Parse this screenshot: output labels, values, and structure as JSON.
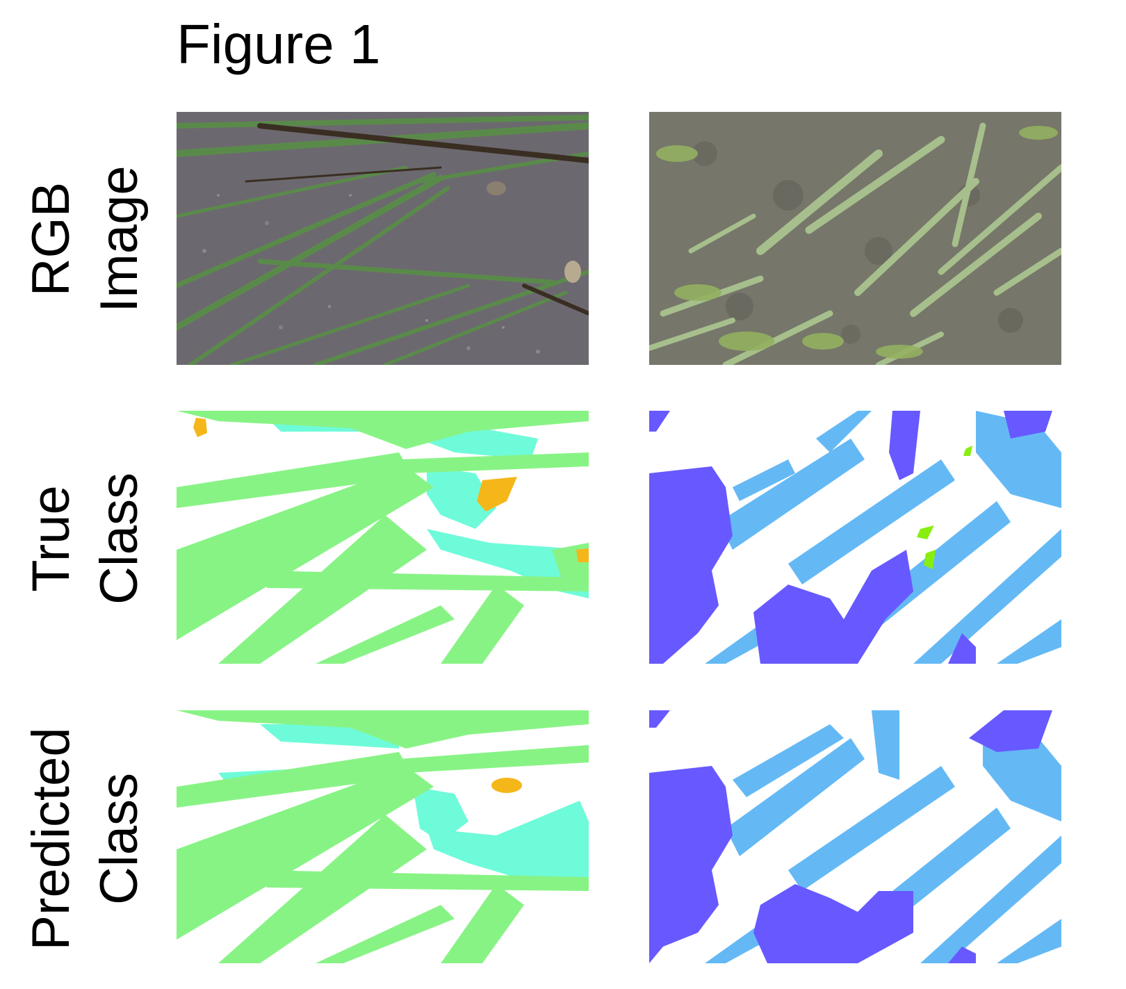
{
  "figure": {
    "title": "Figure 1"
  },
  "rows": [
    {
      "line1": "RGB",
      "line2": "Image"
    },
    {
      "line1": "True",
      "line2": "Class"
    },
    {
      "line1": "Predicted",
      "line2": "Class"
    }
  ],
  "colors": {
    "grass_class": "#88f385",
    "cyan_class": "#6efbd9",
    "orange_class": "#f5b619",
    "violet_class": "#6759ff",
    "sky_class": "#64b9f5",
    "lime_class": "#88ee10",
    "soil_left": "#6c6870",
    "soil_right": "#76766a",
    "grass_blade": "#5a8a4a",
    "succulent": "#a6bf8c"
  }
}
